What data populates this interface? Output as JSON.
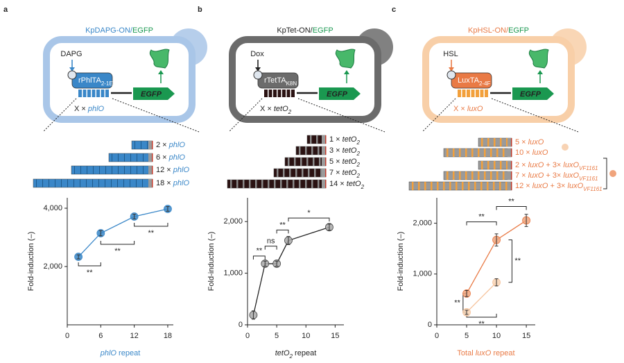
{
  "panels": [
    {
      "letter": "a",
      "accent": "#3a87c8",
      "cell_color": "#a9c6e8",
      "title": [
        {
          "text": "KpDAPG-ON/",
          "color": "#3a87c8"
        },
        {
          "text": "EGFP",
          "color": "#1a9850"
        }
      ],
      "inducer": "DAPG",
      "activator": [
        {
          "text": "rPhlTA"
        },
        {
          "text": "2-1E",
          "style": "sub"
        }
      ],
      "reporter": "EGFP",
      "operator": [
        {
          "text": "X × "
        },
        {
          "text": "phlO",
          "style": "italic",
          "color": "#3a87c8"
        }
      ],
      "constructs": [
        [
          {
            "text": "2 × "
          },
          {
            "text": "phlO",
            "style": "italic",
            "color": "#3a87c8"
          }
        ],
        [
          {
            "text": "6 × "
          },
          {
            "text": "phlO",
            "style": "italic",
            "color": "#3a87c8"
          }
        ],
        [
          {
            "text": "12 × "
          },
          {
            "text": "phlO",
            "style": "italic",
            "color": "#3a87c8"
          }
        ],
        [
          {
            "text": "18 × "
          },
          {
            "text": "phlO",
            "style": "italic",
            "color": "#3a87c8"
          }
        ]
      ]
    },
    {
      "letter": "b",
      "accent": "#6b6b6b",
      "cell_color": "#6b6b6b",
      "title": [
        {
          "text": "KpTet-ON/",
          "color": "#222222"
        },
        {
          "text": "EGFP",
          "color": "#1a9850"
        }
      ],
      "inducer": "Dox",
      "activator": [
        {
          "text": "rTetTA"
        },
        {
          "text": "K8N",
          "style": "sub"
        }
      ],
      "reporter": "EGFP",
      "operator": [
        {
          "text": "X × "
        },
        {
          "text": "tetO",
          "style": "italic"
        },
        {
          "text": "2",
          "style": "sub"
        }
      ],
      "constructs": [
        [
          {
            "text": "1 × "
          },
          {
            "text": "tetO",
            "style": "italic"
          },
          {
            "text": "2",
            "style": "sub"
          }
        ],
        [
          {
            "text": "3 × "
          },
          {
            "text": "tetO",
            "style": "italic"
          },
          {
            "text": "2",
            "style": "sub"
          }
        ],
        [
          {
            "text": "5 × "
          },
          {
            "text": "tetO",
            "style": "italic"
          },
          {
            "text": "2",
            "style": "sub"
          }
        ],
        [
          {
            "text": "7 × "
          },
          {
            "text": "tetO",
            "style": "italic"
          },
          {
            "text": "2",
            "style": "sub"
          }
        ],
        [
          {
            "text": "14 × "
          },
          {
            "text": "tetO",
            "style": "italic"
          },
          {
            "text": "2",
            "style": "sub"
          }
        ]
      ]
    },
    {
      "letter": "c",
      "accent": "#e97a45",
      "cell_color": "#f8cfa8",
      "label_color": "#e97a45",
      "title": [
        {
          "text": "KpHSL-ON/",
          "color": "#e97a45"
        },
        {
          "text": "EGFP",
          "color": "#1a9850"
        }
      ],
      "inducer": "HSL",
      "activator": [
        {
          "text": "LuxTA"
        },
        {
          "text": "2-4F",
          "style": "sub"
        }
      ],
      "reporter": "EGFP",
      "operator": [
        {
          "text": "X × "
        },
        {
          "text": "luxO",
          "style": "italic"
        }
      ],
      "constructs": [
        [
          {
            "text": "5 × "
          },
          {
            "text": "luxO",
            "style": "italic"
          }
        ],
        [
          {
            "text": "10 × "
          },
          {
            "text": "luxO",
            "style": "italic"
          }
        ],
        [
          {
            "text": "2 × "
          },
          {
            "text": "luxO",
            "style": "italic"
          },
          {
            "text": " + 3× "
          },
          {
            "text": "luxO",
            "style": "italic"
          },
          {
            "text": "VF1161",
            "style": "sub"
          }
        ],
        [
          {
            "text": "7 × "
          },
          {
            "text": "luxO",
            "style": "italic"
          },
          {
            "text": " + 3× "
          },
          {
            "text": "luxO",
            "style": "italic"
          },
          {
            "text": "VF1161",
            "style": "sub"
          }
        ],
        [
          {
            "text": "12 × "
          },
          {
            "text": "luxO",
            "style": "italic"
          },
          {
            "text": " + 3× "
          },
          {
            "text": "luxO",
            "style": "italic"
          },
          {
            "text": "VF1161",
            "style": "sub"
          }
        ]
      ]
    }
  ],
  "chart_data": [
    {
      "type": "line",
      "y_label": "Fold-induction  (–)",
      "x_label": [
        {
          "text": "phlO",
          "style": "italic",
          "color": "#3a87c8"
        },
        {
          "text": " repeat",
          "color": "#3a87c8"
        }
      ],
      "xlim": [
        0,
        19
      ],
      "ylim": [
        0,
        4357
      ],
      "xticks": [
        0,
        6,
        12,
        18
      ],
      "yticks": [
        {
          "value": 2000,
          "label": "2,000"
        },
        {
          "value": 4000,
          "label": "4,000"
        }
      ],
      "series": [
        {
          "color": "#3a87c8",
          "marker_color": "#3a87c8",
          "x": [
            2,
            6,
            12,
            18
          ],
          "values": [
            2333,
            3143,
            3714,
            3976
          ],
          "errors": [
            70,
            90,
            80,
            80
          ]
        }
      ],
      "brackets": [
        {
          "label": "**",
          "x": [
            2,
            6
          ],
          "y": 2024,
          "side": "below"
        },
        {
          "label": "**",
          "x": [
            6,
            12
          ],
          "y": 2762,
          "side": "below"
        },
        {
          "label": "**",
          "x": [
            12,
            18
          ],
          "y": 3381,
          "side": "below"
        }
      ]
    },
    {
      "type": "line",
      "y_label": "Fold-induction  (–)",
      "x_label": [
        {
          "text": "tetO",
          "style": "italic"
        },
        {
          "text": "2",
          "style": "sub"
        },
        {
          "text": " repeat"
        }
      ],
      "xlim": [
        0,
        16.5
      ],
      "ylim": [
        0,
        2460
      ],
      "xticks": [
        0,
        5,
        10,
        15
      ],
      "yticks": [
        0,
        {
          "value": 1000,
          "label": "1,000"
        },
        {
          "value": 2000,
          "label": "2,000"
        }
      ],
      "series": [
        {
          "color": "#222222",
          "marker_color": "#a9a9a9",
          "x": [
            1,
            3,
            5,
            7,
            14
          ],
          "values": [
            190,
            1184,
            1184,
            1633,
            1891
          ],
          "errors": [
            80,
            50,
            50,
            80,
            60
          ]
        }
      ],
      "brackets": [
        {
          "label": "**",
          "x": [
            1,
            3
          ],
          "y": 1333,
          "side": "above"
        },
        {
          "label": "ns",
          "x": [
            3,
            5
          ],
          "y": 1524,
          "side": "above"
        },
        {
          "label": "**",
          "x": [
            5,
            7
          ],
          "y": 1837,
          "side": "above"
        },
        {
          "label": "*",
          "x": [
            7,
            14
          ],
          "y": 2068,
          "side": "above"
        }
      ]
    },
    {
      "type": "line",
      "y_label": "Fold-induction  (–)",
      "x_label": [
        {
          "text": "Total ",
          "color": "#e97a45"
        },
        {
          "text": "luxO",
          "style": "italic",
          "color": "#e97a45"
        },
        {
          "text": " repeat",
          "color": "#e97a45"
        }
      ],
      "xlim": [
        0,
        16.5
      ],
      "ylim": [
        0,
        2500
      ],
      "xticks": [
        0,
        5,
        10,
        15
      ],
      "yticks": [
        0,
        {
          "value": 1000,
          "label": "1,000"
        },
        {
          "value": 2000,
          "label": "2,000"
        }
      ],
      "series": [
        {
          "color": "#e97a45",
          "marker_color": "#f0a47c",
          "x": [
            5,
            10,
            15
          ],
          "values": [
            616,
            1671,
            2055
          ],
          "errors": [
            60,
            120,
            120
          ]
        },
        {
          "color": "#f6c29a",
          "marker_color": "#f8d3b4",
          "x": [
            5,
            10
          ],
          "values": [
            247,
            836
          ],
          "errors": [
            40,
            70
          ]
        }
      ],
      "brackets": [
        {
          "label": "**",
          "x": [
            5,
            10
          ],
          "y": 2027,
          "side": "above"
        },
        {
          "label": "**",
          "x": [
            10,
            15
          ],
          "y": 2329,
          "side": "above"
        },
        {
          "label": "**",
          "y": [
            836,
            1671
          ],
          "x": 12.6,
          "side": "right"
        },
        {
          "label": "**",
          "y": [
            247,
            616
          ],
          "x": 4.4,
          "side": "left"
        },
        {
          "label": "**",
          "x": [
            5,
            10
          ],
          "y": 151,
          "side": "below"
        }
      ]
    }
  ]
}
